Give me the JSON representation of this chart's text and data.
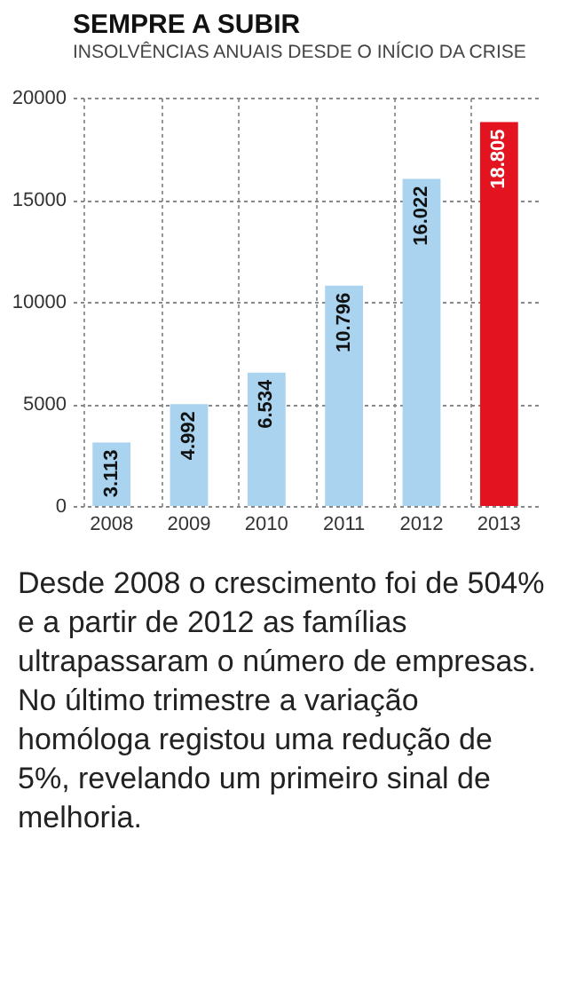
{
  "chart_data": {
    "type": "bar",
    "title": "SEMPRE A SUBIR",
    "subtitle": "INSOLVÊNCIAS ANUAIS DESDE O INÍCIO DA CRISE",
    "categories": [
      "2008",
      "2009",
      "2010",
      "2011",
      "2012",
      "2013"
    ],
    "values": [
      3113,
      4992,
      6534,
      10796,
      16022,
      18805
    ],
    "colors": [
      "#a9d3ef",
      "#a9d3ef",
      "#a9d3ef",
      "#a9d3ef",
      "#a9d3ef",
      "#e3141f"
    ],
    "value_labels": [
      "3.113",
      "4.992",
      "6.534",
      "10.796",
      "16.022",
      "18.805"
    ],
    "ylim": [
      0,
      20000
    ],
    "yticks": [
      0,
      5000,
      10000,
      15000,
      20000
    ],
    "grid": true,
    "annotations": [
      "Desde 2008 o crescimento foi de 504% e a partir de 2012 as famílias ultrapassaram o número de empresas. No último trimestre a variação homóloga registou uma redução de 5%, revelando um primeiro sinal de melhoria."
    ]
  }
}
